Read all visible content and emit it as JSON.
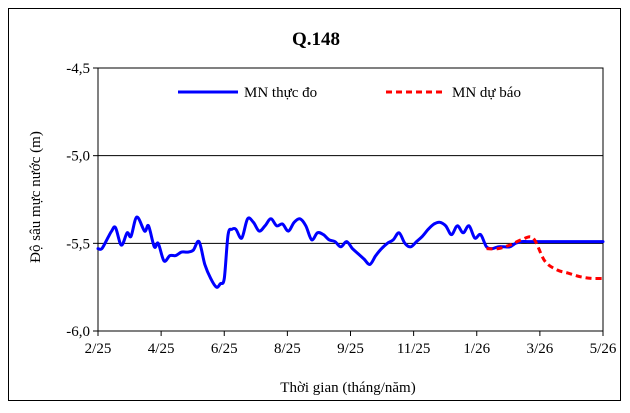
{
  "chart_data": {
    "type": "line",
    "title": "Q.148",
    "xlabel": "Thời gian (tháng/năm)",
    "ylabel": "Độ sâu mực nước (m)",
    "ylim": [
      -6.0,
      -4.5
    ],
    "yticks": [
      -4.5,
      -5.0,
      -5.5,
      -6.0
    ],
    "ytick_labels": [
      "-4,5",
      "-5,0",
      "-5,5",
      "-6,0"
    ],
    "grid": "horizontal",
    "legend_position": "top",
    "x_tick_labels": [
      "2/25",
      "4/25",
      "6/25",
      "8/25",
      "9/25",
      "11/25",
      "1/26",
      "3/26",
      "5/26"
    ],
    "series": [
      {
        "name": "MN thực đo",
        "color": "#0000ff",
        "style": "solid",
        "x": [
          0,
          0.1,
          0.25,
          0.35,
          0.45,
          0.6,
          0.75,
          0.85,
          1.0,
          1.2,
          1.3,
          1.45,
          1.55,
          1.7,
          1.85,
          2.0,
          2.15,
          2.3,
          2.45,
          2.6,
          2.75,
          2.9,
          3.05,
          3.15,
          3.25,
          3.35,
          3.45,
          3.55,
          3.7,
          3.85,
          4.0,
          4.15,
          4.3,
          4.45,
          4.6,
          4.75,
          4.9,
          5.05,
          5.2,
          5.35,
          5.5,
          5.65,
          5.8,
          5.95,
          6.1,
          6.25,
          6.4,
          6.55,
          6.7,
          6.85,
          7.0,
          7.15,
          7.3,
          7.45,
          7.6,
          7.75,
          7.9,
          8.05,
          8.2,
          8.35,
          8.5,
          8.65,
          8.8,
          8.95,
          9.1,
          9.25,
          9.4,
          9.55,
          9.7,
          9.85,
          10.0,
          10.15,
          10.3,
          10.45,
          10.6,
          10.75,
          10.9,
          11.05,
          11.2,
          11.35,
          11.5,
          11.65,
          11.8,
          11.95,
          12.1,
          12.25,
          12.4,
          12.55,
          12.7,
          12.85,
          13.0
        ],
        "y": [
          -5.53,
          -5.53,
          -5.47,
          -5.43,
          -5.41,
          -5.51,
          -5.44,
          -5.46,
          -5.35,
          -5.43,
          -5.4,
          -5.52,
          -5.5,
          -5.6,
          -5.57,
          -5.57,
          -5.55,
          -5.55,
          -5.54,
          -5.49,
          -5.62,
          -5.7,
          -5.75,
          -5.73,
          -5.7,
          -5.45,
          -5.42,
          -5.42,
          -5.47,
          -5.36,
          -5.38,
          -5.43,
          -5.4,
          -5.36,
          -5.4,
          -5.39,
          -5.43,
          -5.38,
          -5.36,
          -5.4,
          -5.48,
          -5.44,
          -5.45,
          -5.48,
          -5.49,
          -5.52,
          -5.49,
          -5.53,
          -5.56,
          -5.59,
          -5.62,
          -5.57,
          -5.53,
          -5.5,
          -5.48,
          -5.44,
          -5.5,
          -5.52,
          -5.49,
          -5.46,
          -5.42,
          -5.39,
          -5.38,
          -5.4,
          -5.45,
          -5.4,
          -5.44,
          -5.4,
          -5.47,
          -5.45,
          -5.52,
          -5.53,
          -5.52,
          -5.52,
          -5.52,
          -5.5,
          -5.49,
          -5.49,
          -5.49,
          -5.49,
          -5.49,
          -5.49,
          -5.49,
          -5.49,
          -5.49,
          -5.49,
          -5.49,
          -5.49,
          -5.49,
          -5.49,
          -5.49
        ]
      },
      {
        "name": "MN dự báo",
        "color": "#ff0000",
        "style": "dashed",
        "x": [
          10.0,
          10.3,
          10.6,
          10.9,
          11.2,
          11.5,
          11.8,
          12.1,
          12.4,
          12.7,
          13.0
        ],
        "y": [
          -5.53,
          -5.53,
          -5.51,
          -5.48,
          -5.47,
          -5.6,
          -5.65,
          -5.67,
          -5.69,
          -5.7,
          -5.7
        ]
      }
    ]
  }
}
